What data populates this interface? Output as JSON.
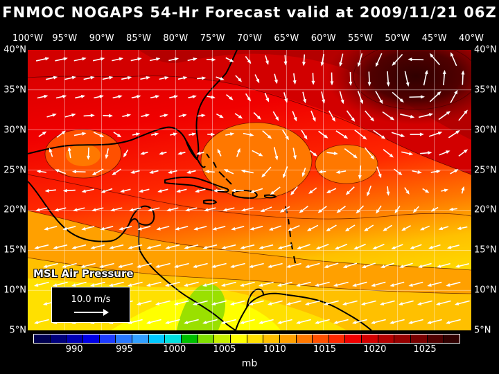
{
  "title": "FNMOC NOGAPS 54-Hr Forecast valid at 2009/11/21 06Z",
  "longitude_labels": [
    "100°W",
    "95°W",
    "90°W",
    "85°W",
    "80°W",
    "75°W",
    "70°W",
    "65°W",
    "60°W",
    "55°W",
    "50°W",
    "45°W",
    "40°W"
  ],
  "latitude_labels": [
    "40°N",
    "35°N",
    "30°N",
    "25°N",
    "20°N",
    "15°N",
    "10°N",
    "5°N"
  ],
  "field_label": "MSL Air Pressure",
  "wind_scale_label": "10.0 m/s",
  "colorbar": {
    "unit": "mb",
    "tick_labels": [
      "990",
      "995",
      "1000",
      "1005",
      "1010",
      "1015",
      "1020",
      "1025"
    ],
    "colors": [
      "#000050",
      "#00007d",
      "#0000b4",
      "#0000e6",
      "#1e3cff",
      "#2878ff",
      "#32a0ff",
      "#00c8ff",
      "#00e0e0",
      "#00c000",
      "#80e000",
      "#c8f000",
      "#ffff00",
      "#ffe000",
      "#ffc000",
      "#ffa000",
      "#ff7800",
      "#ff5000",
      "#ff2800",
      "#f00000",
      "#d20000",
      "#b40000",
      "#960000",
      "#780000",
      "#500000",
      "#300000"
    ]
  },
  "pressure_field": {
    "contour_interval_mb": 2.5,
    "regions": [
      {
        "name": "high-north-atlantic",
        "center": "~50°W 38°N",
        "range": "1022-1025 mb"
      },
      {
        "name": "high-central",
        "range": "1017-1020 mb"
      },
      {
        "name": "low-gulf-of-mexico",
        "center": "~95°W 27°N",
        "range": "~1015 mb"
      },
      {
        "name": "low-southwest-atlantic",
        "center": "~67°W 29°N",
        "range": "~1015 mb"
      },
      {
        "name": "low-atlantic",
        "center": "~57°W 26°N",
        "range": "~1015 mb"
      },
      {
        "name": "low-caribbean",
        "center": "~82°W 10°N",
        "range": "1005-1007 mb"
      }
    ]
  },
  "wind_vectors": "white arrows showing the surface wind; clockwise circulation around the high in the northeast; easterly trades across the Caribbean"
}
